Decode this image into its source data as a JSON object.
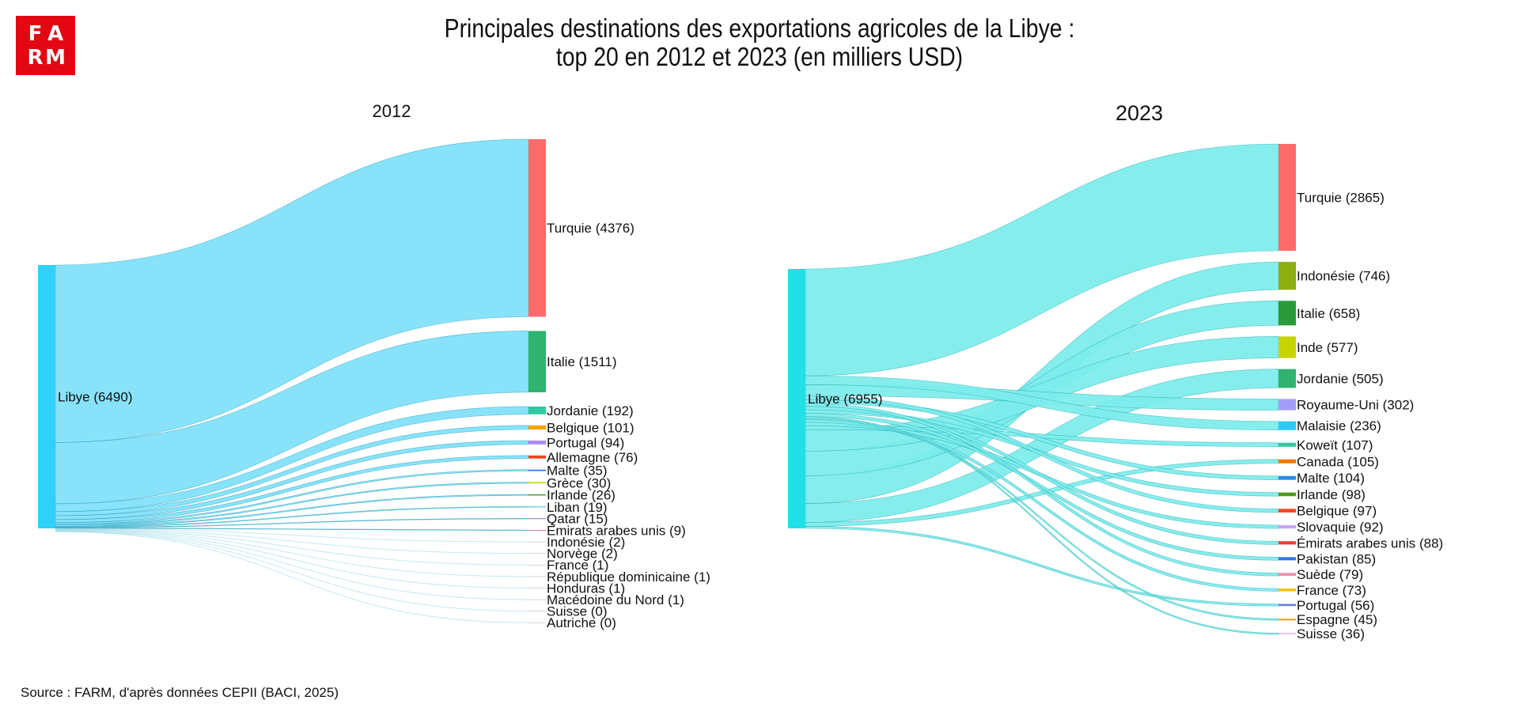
{
  "logo": {
    "letters": [
      "F",
      "A",
      "R",
      "M"
    ]
  },
  "title_line1": "Principales destinations des exportations agricoles de la Libye :",
  "title_line2": "top 20 en 2012 et 2023 (en milliers USD)",
  "source": "Source : FARM, d'après données CEPII (BACI, 2025)",
  "colors": {
    "logo_red": "#e30613"
  },
  "chart_data": [
    {
      "type": "sankey",
      "title": "2012",
      "source_node": {
        "label": "Libye (6490)",
        "name": "Libye",
        "value": 6490,
        "color": "#30d0f8"
      },
      "link_color": "#7ee1fa",
      "targets": [
        {
          "name": "Turquie",
          "value": 4376,
          "label": "Turquie (4376)",
          "color": "#ff6b6b"
        },
        {
          "name": "Italie",
          "value": 1511,
          "label": "Italie (1511)",
          "color": "#2fb36e"
        },
        {
          "name": "Jordanie",
          "value": 192,
          "label": "Jordanie (192)",
          "color": "#32c9a0"
        },
        {
          "name": "Belgique",
          "value": 101,
          "label": "Belgique (101)",
          "color": "#f4a300"
        },
        {
          "name": "Portugal",
          "value": 94,
          "label": "Portugal (94)",
          "color": "#a98bf0"
        },
        {
          "name": "Allemagne",
          "value": 76,
          "label": "Allemagne (76)",
          "color": "#f0461e"
        },
        {
          "name": "Malte",
          "value": 35,
          "label": "Malte (35)",
          "color": "#2a7ae2"
        },
        {
          "name": "Grèce",
          "value": 30,
          "label": "Grèce (30)",
          "color": "#c5d400"
        },
        {
          "name": "Irlande",
          "value": 26,
          "label": "Irlande (26)",
          "color": "#3c8c2a"
        },
        {
          "name": "Liban",
          "value": 19,
          "label": "Liban (19)",
          "color": "#2fc4d8"
        },
        {
          "name": "Qatar",
          "value": 15,
          "label": "Qatar (15)",
          "color": "#6a5acd"
        },
        {
          "name": "Émirats arabes unis",
          "value": 9,
          "label": "Émirats arabes unis (9)",
          "color": "#e0607e"
        },
        {
          "name": "Indonésie",
          "value": 2,
          "label": "Indonésie (2)",
          "color": "#cccccc"
        },
        {
          "name": "Norvège",
          "value": 2,
          "label": "Norvège (2)",
          "color": "#cccccc"
        },
        {
          "name": "France",
          "value": 1,
          "label": "France (1)",
          "color": "#cccccc"
        },
        {
          "name": "République dominicaine",
          "value": 1,
          "label": "République dominicaine (1)",
          "color": "#cccccc"
        },
        {
          "name": "Honduras",
          "value": 1,
          "label": "Honduras (1)",
          "color": "#cccccc"
        },
        {
          "name": "Macédoine du Nord",
          "value": 1,
          "label": "Macédoine du Nord (1)",
          "color": "#cccccc"
        },
        {
          "name": "Suisse",
          "value": 0,
          "label": "Suisse (0)",
          "color": "#cccccc"
        },
        {
          "name": "Autriche",
          "value": 0,
          "label": "Autriche (0)",
          "color": "#cccccc"
        }
      ]
    },
    {
      "type": "sankey",
      "title": "2023",
      "source_node": {
        "label": "Libye (6955)",
        "name": "Libye",
        "value": 6955,
        "color": "#22e0e8"
      },
      "link_color": "#7cecec",
      "targets": [
        {
          "name": "Turquie",
          "value": 2865,
          "label": "Turquie (2865)",
          "color": "#ff6b6b"
        },
        {
          "name": "Indonésie",
          "value": 746,
          "label": "Indonésie (746)",
          "color": "#8cae10"
        },
        {
          "name": "Italie",
          "value": 658,
          "label": "Italie (658)",
          "color": "#2a9a3a"
        },
        {
          "name": "Inde",
          "value": 577,
          "label": "Inde (577)",
          "color": "#c8d400"
        },
        {
          "name": "Jordanie",
          "value": 505,
          "label": "Jordanie (505)",
          "color": "#2fb36e"
        },
        {
          "name": "Royaume-Uni",
          "value": 302,
          "label": "Royaume-Uni (302)",
          "color": "#a49cf8"
        },
        {
          "name": "Malaisie",
          "value": 236,
          "label": "Malaisie (236)",
          "color": "#30c8f5"
        },
        {
          "name": "Koweït",
          "value": 107,
          "label": "Koweït (107)",
          "color": "#32c9a0"
        },
        {
          "name": "Canada",
          "value": 105,
          "label": "Canada (105)",
          "color": "#f07800"
        },
        {
          "name": "Malte",
          "value": 104,
          "label": "Malte (104)",
          "color": "#2a8ae8"
        },
        {
          "name": "Irlande",
          "value": 98,
          "label": "Irlande (98)",
          "color": "#4a9a1a"
        },
        {
          "name": "Belgique",
          "value": 97,
          "label": "Belgique (97)",
          "color": "#f0461e"
        },
        {
          "name": "Slovaquie",
          "value": 92,
          "label": "Slovaquie (92)",
          "color": "#c4a8f8"
        },
        {
          "name": "Émirats arabes unis",
          "value": 88,
          "label": "Émirats arabes unis (88)",
          "color": "#f03c32"
        },
        {
          "name": "Pakistan",
          "value": 85,
          "label": "Pakistan (85)",
          "color": "#2a78e0"
        },
        {
          "name": "Suède",
          "value": 79,
          "label": "Suède (79)",
          "color": "#f48aa8"
        },
        {
          "name": "France",
          "value": 73,
          "label": "France (73)",
          "color": "#f4c000"
        },
        {
          "name": "Portugal",
          "value": 56,
          "label": "Portugal (56)",
          "color": "#6a7ae0"
        },
        {
          "name": "Espagne",
          "value": 45,
          "label": "Espagne (45)",
          "color": "#f4a020"
        },
        {
          "name": "Suisse",
          "value": 36,
          "label": "Suisse (36)",
          "color": "#f0b8e0"
        }
      ]
    }
  ]
}
